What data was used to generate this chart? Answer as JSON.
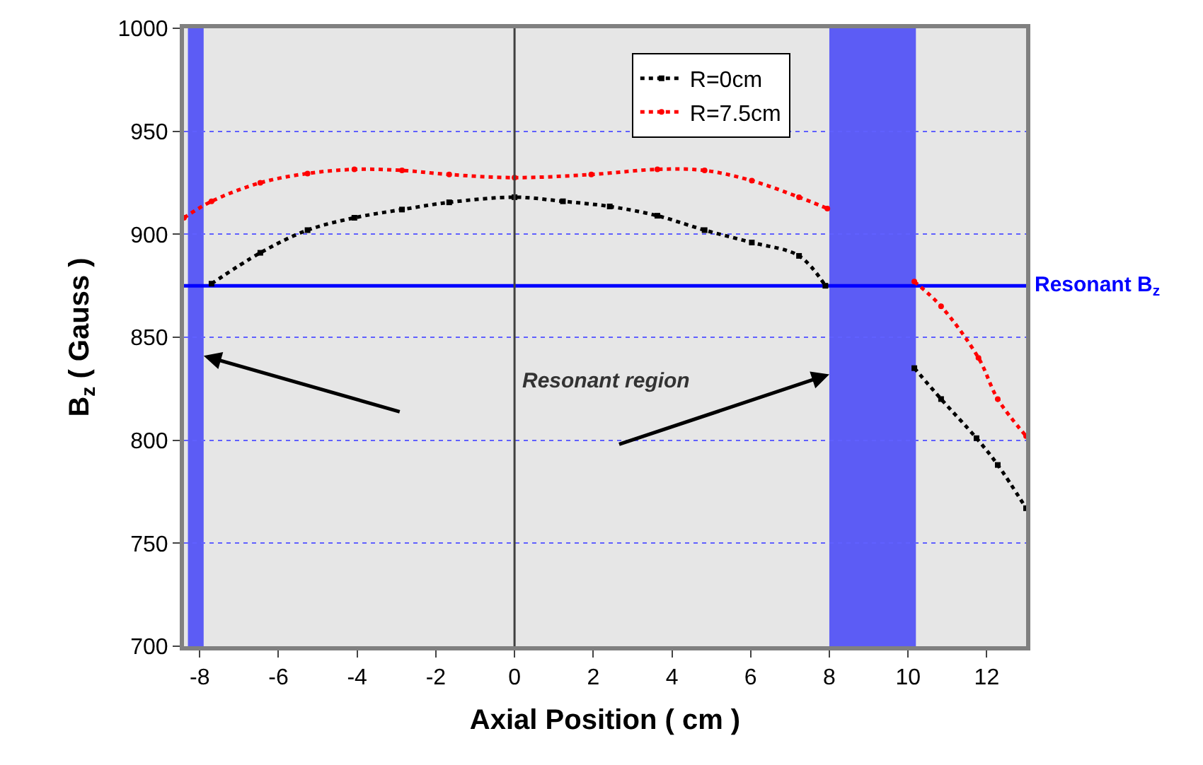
{
  "chart_data": {
    "type": "line",
    "xlabel": "Axial Position ( cm )",
    "ylabel": "B$_{z}$ ( Gauss )",
    "series": [
      {
        "name": "R=0cm",
        "color": "#000000",
        "marker": "square",
        "x": [
          -7.7,
          -6.46,
          -5.26,
          -4.07,
          -2.86,
          -1.66,
          0,
          1.23,
          2.42,
          3.63,
          4.83,
          6.03,
          7.23,
          7.9,
          null,
          10.16,
          10.84,
          11.74,
          12.28,
          13
        ],
        "values": [
          876,
          891,
          902,
          908,
          912,
          915.5,
          918,
          916,
          913.5,
          909,
          902,
          896,
          889.5,
          875,
          null,
          835,
          820,
          801,
          788,
          767
        ]
      },
      {
        "name": "R=7.5cm",
        "color": "#ff0000",
        "marker": "circle",
        "x": [
          -8.4,
          -7.7,
          -6.46,
          -5.26,
          -4.07,
          -2.86,
          -1.66,
          0,
          1.95,
          3.63,
          4.83,
          6.03,
          7.23,
          7.95,
          null,
          10.16,
          10.84,
          11.79,
          12.28,
          13
        ],
        "values": [
          908,
          916,
          925,
          929.5,
          931.5,
          931,
          929,
          927.5,
          929,
          931.5,
          931,
          926,
          918,
          912.5,
          null,
          877,
          865,
          840,
          820,
          802
        ]
      }
    ],
    "xlim": [
      -8.4,
      13
    ],
    "xticks": [
      -8,
      -6,
      -4,
      -2,
      0,
      2,
      4,
      6,
      8,
      10,
      12
    ],
    "ylim": [
      700,
      1000
    ],
    "yticks": [
      700,
      750,
      800,
      850,
      900,
      950,
      1000
    ],
    "grid": "y",
    "legend": "top right",
    "line_style": "dotted",
    "ref_lines": [
      {
        "axis": "x",
        "value": 0,
        "label": null,
        "color": "#404040"
      },
      {
        "axis": "y",
        "value": 875,
        "label": "Resonant B$_{z}$",
        "color": "#0000ff"
      }
    ],
    "bands": [
      {
        "axis": "x",
        "from": -8.3,
        "to": -7.9,
        "label": null,
        "color": "#0000ff"
      },
      {
        "axis": "x",
        "from": 8,
        "to": 10.2,
        "label": null,
        "color": "#0000ff"
      }
    ],
    "annotations": [
      "Resonant region"
    ]
  }
}
